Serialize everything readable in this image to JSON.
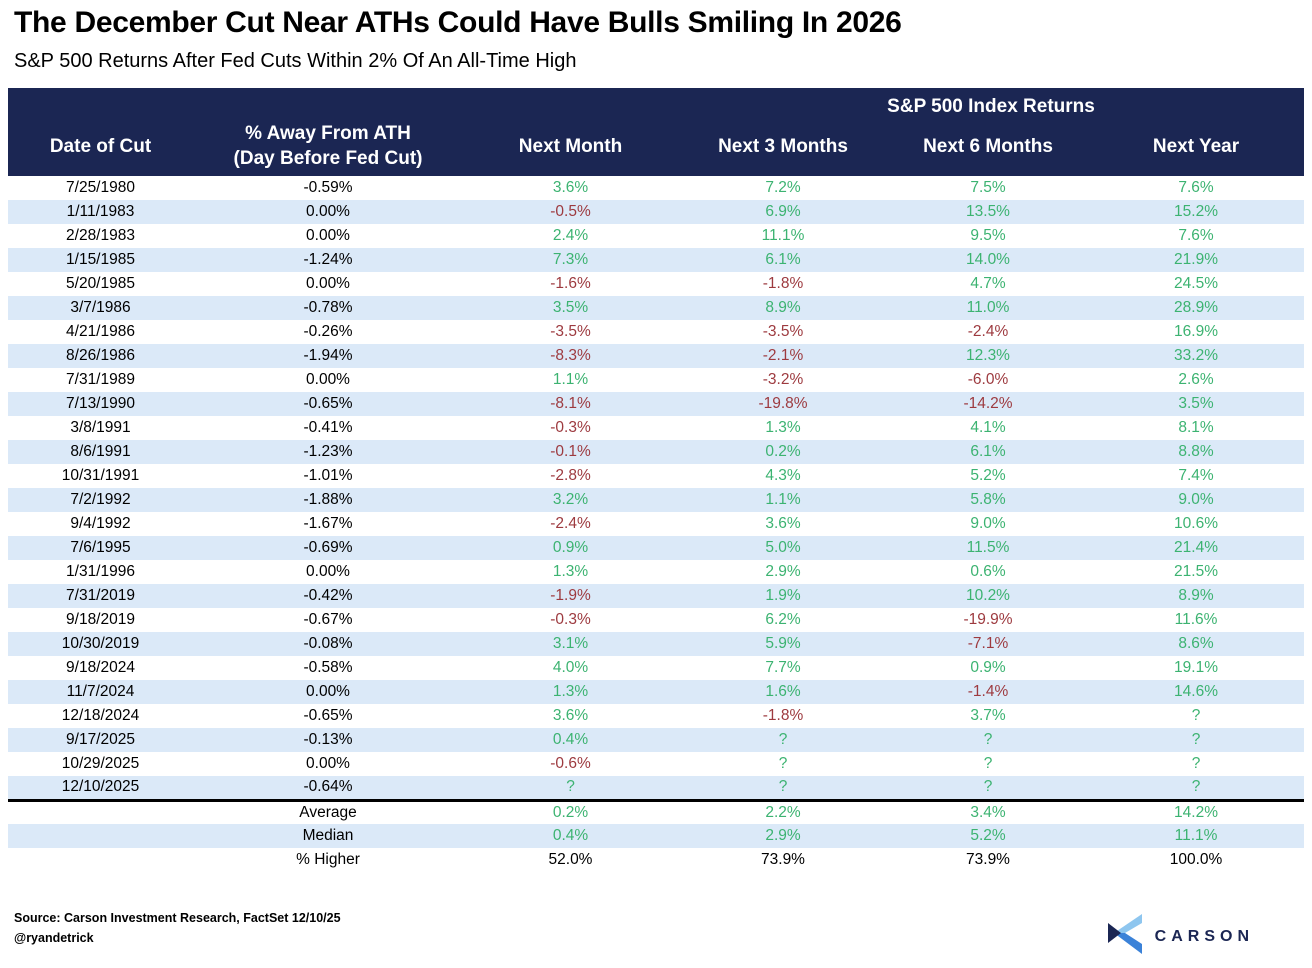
{
  "chart_data": {
    "type": "table",
    "title": "The December Cut Near ATHs Could Have Bulls Smiling In 2026",
    "subtitle": "S&P 500 Returns After Fed Cuts Within 2% Of An All-Time High",
    "group_header": "S&P 500 Index Returns",
    "columns": [
      {
        "label": "Date of Cut"
      },
      {
        "label": "% Away From ATH",
        "sublabel": "(Day Before Fed Cut)"
      },
      {
        "label": "Next Month"
      },
      {
        "label": "Next 3 Months"
      },
      {
        "label": "Next 6 Months"
      },
      {
        "label": "Next Year"
      }
    ],
    "rows": [
      [
        "7/25/1980",
        "-0.59%",
        "3.6%",
        "7.2%",
        "7.5%",
        "7.6%"
      ],
      [
        "1/11/1983",
        "0.00%",
        "-0.5%",
        "6.9%",
        "13.5%",
        "15.2%"
      ],
      [
        "2/28/1983",
        "0.00%",
        "2.4%",
        "11.1%",
        "9.5%",
        "7.6%"
      ],
      [
        "1/15/1985",
        "-1.24%",
        "7.3%",
        "6.1%",
        "14.0%",
        "21.9%"
      ],
      [
        "5/20/1985",
        "0.00%",
        "-1.6%",
        "-1.8%",
        "4.7%",
        "24.5%"
      ],
      [
        "3/7/1986",
        "-0.78%",
        "3.5%",
        "8.9%",
        "11.0%",
        "28.9%"
      ],
      [
        "4/21/1986",
        "-0.26%",
        "-3.5%",
        "-3.5%",
        "-2.4%",
        "16.9%"
      ],
      [
        "8/26/1986",
        "-1.94%",
        "-8.3%",
        "-2.1%",
        "12.3%",
        "33.2%"
      ],
      [
        "7/31/1989",
        "0.00%",
        "1.1%",
        "-3.2%",
        "-6.0%",
        "2.6%"
      ],
      [
        "7/13/1990",
        "-0.65%",
        "-8.1%",
        "-19.8%",
        "-14.2%",
        "3.5%"
      ],
      [
        "3/8/1991",
        "-0.41%",
        "-0.3%",
        "1.3%",
        "4.1%",
        "8.1%"
      ],
      [
        "8/6/1991",
        "-1.23%",
        "-0.1%",
        "0.2%",
        "6.1%",
        "8.8%"
      ],
      [
        "10/31/1991",
        "-1.01%",
        "-2.8%",
        "4.3%",
        "5.2%",
        "7.4%"
      ],
      [
        "7/2/1992",
        "-1.88%",
        "3.2%",
        "1.1%",
        "5.8%",
        "9.0%"
      ],
      [
        "9/4/1992",
        "-1.67%",
        "-2.4%",
        "3.6%",
        "9.0%",
        "10.6%"
      ],
      [
        "7/6/1995",
        "-0.69%",
        "0.9%",
        "5.0%",
        "11.5%",
        "21.4%"
      ],
      [
        "1/31/1996",
        "0.00%",
        "1.3%",
        "2.9%",
        "0.6%",
        "21.5%"
      ],
      [
        "7/31/2019",
        "-0.42%",
        "-1.9%",
        "1.9%",
        "10.2%",
        "8.9%"
      ],
      [
        "9/18/2019",
        "-0.67%",
        "-0.3%",
        "6.2%",
        "-19.9%",
        "11.6%"
      ],
      [
        "10/30/2019",
        "-0.08%",
        "3.1%",
        "5.9%",
        "-7.1%",
        "8.6%"
      ],
      [
        "9/18/2024",
        "-0.58%",
        "4.0%",
        "7.7%",
        "0.9%",
        "19.1%"
      ],
      [
        "11/7/2024",
        "0.00%",
        "1.3%",
        "1.6%",
        "-1.4%",
        "14.6%"
      ],
      [
        "12/18/2024",
        "-0.65%",
        "3.6%",
        "-1.8%",
        "3.7%",
        "?"
      ],
      [
        "9/17/2025",
        "-0.13%",
        "0.4%",
        "?",
        "?",
        "?"
      ],
      [
        "10/29/2025",
        "0.00%",
        "-0.6%",
        "?",
        "?",
        "?"
      ],
      [
        "12/10/2025",
        "-0.64%",
        "?",
        "?",
        "?",
        "?"
      ]
    ],
    "summary": [
      {
        "label": "Average",
        "values": [
          "0.2%",
          "2.2%",
          "3.4%",
          "14.2%"
        ],
        "value_color": "signed"
      },
      {
        "label": "Median",
        "values": [
          "0.4%",
          "2.9%",
          "5.2%",
          "11.1%"
        ],
        "value_color": "signed"
      },
      {
        "label": "% Higher",
        "values": [
          "52.0%",
          "73.9%",
          "73.9%",
          "100.0%"
        ],
        "value_color": "neutral"
      }
    ]
  },
  "footer": {
    "source": "Source: Carson Investment Research, FactSet 12/10/25",
    "handle": "@ryandetrick",
    "logo_text": "CARSON",
    "logo_icon": "carson-chevron-icon"
  },
  "palette": {
    "header_bg": "#1b2653",
    "stripe": "#dbe9f8",
    "positive": "#3cb371",
    "negative": "#9d3a3f",
    "logo_navy": "#1b2653",
    "logo_blue": "#3b82d8",
    "logo_light_blue": "#8ec6ef"
  }
}
